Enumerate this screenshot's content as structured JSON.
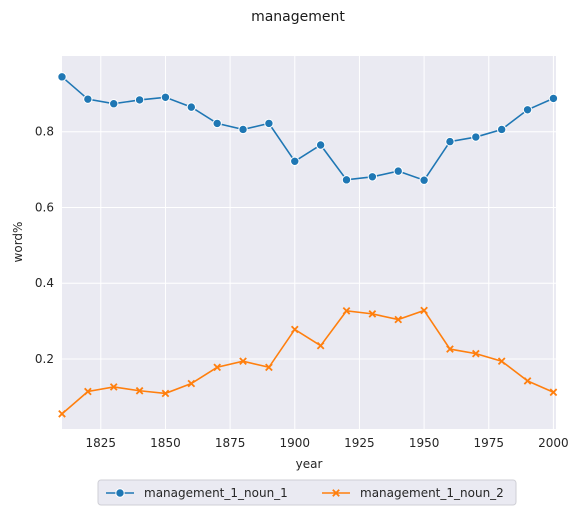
{
  "chart_data": {
    "type": "line",
    "title": "management",
    "xlabel": "year",
    "ylabel": "word%",
    "xlim": [
      1810,
      2001
    ],
    "ylim": [
      0.015,
      1.0
    ],
    "grid": true,
    "legend_position": "bottom-center",
    "x_ticks": [
      1825,
      1850,
      1875,
      1900,
      1925,
      1950,
      1975,
      2000
    ],
    "y_ticks": [
      0.2,
      0.4,
      0.6,
      0.8
    ],
    "x": [
      1810,
      1820,
      1830,
      1840,
      1850,
      1860,
      1870,
      1880,
      1890,
      1900,
      1910,
      1920,
      1930,
      1940,
      1950,
      1960,
      1970,
      1980,
      1990,
      2000
    ],
    "series": [
      {
        "name": "management_1_noun_1",
        "color": "#1f77b4",
        "marker": "circle",
        "values": [
          0.945,
          0.886,
          0.874,
          0.884,
          0.891,
          0.865,
          0.822,
          0.806,
          0.822,
          0.722,
          0.765,
          0.673,
          0.681,
          0.696,
          0.672,
          0.774,
          0.786,
          0.806,
          0.858,
          0.888
        ]
      },
      {
        "name": "management_1_noun_2",
        "color": "#ff7f0e",
        "marker": "x",
        "values": [
          0.055,
          0.114,
          0.126,
          0.116,
          0.109,
          0.135,
          0.178,
          0.194,
          0.178,
          0.278,
          0.235,
          0.327,
          0.319,
          0.304,
          0.328,
          0.226,
          0.214,
          0.194,
          0.142,
          0.112
        ]
      }
    ]
  }
}
